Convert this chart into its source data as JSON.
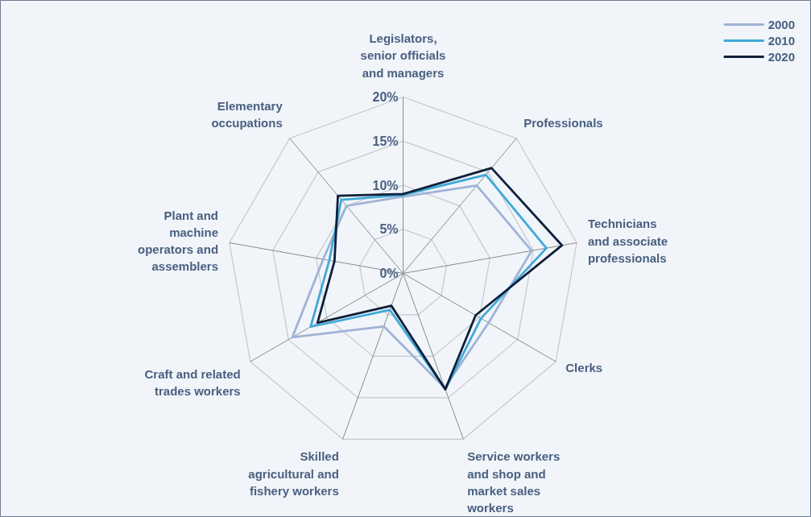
{
  "chart_data": {
    "type": "radar",
    "categories": [
      "Legislators,\nsenior officials\nand managers",
      "Professionals",
      "Technicians\nand associate\nprofessionals",
      "Clerks",
      "Service workers\nand shop and\nmarket sales\nworkers",
      "Skilled\nagricultural and\nfishery workers",
      "Craft and related\ntrades workers",
      "Plant and\nmachine\noperators and\nassemblers",
      "Elementary\noccupations"
    ],
    "series": [
      {
        "name": "2000",
        "color": "#9fb3d6",
        "values": [
          8.7,
          13.0,
          14.8,
          11.2,
          13.8,
          6.4,
          14.5,
          9.2,
          10.0
        ]
      },
      {
        "name": "2010",
        "color": "#3fa9d9",
        "values": [
          8.9,
          14.6,
          16.5,
          10.2,
          14.0,
          4.4,
          12.1,
          8.5,
          10.9
        ]
      },
      {
        "name": "2020",
        "color": "#0f1f3a",
        "values": [
          9.0,
          15.6,
          18.3,
          9.5,
          14.0,
          3.9,
          11.2,
          7.9,
          11.5
        ]
      }
    ],
    "ylim": [
      0,
      20
    ],
    "yticks": [
      {
        "value": 0,
        "label": "0%"
      },
      {
        "value": 5,
        "label": "5%"
      },
      {
        "value": 10,
        "label": "10%"
      },
      {
        "value": 15,
        "label": "15%"
      },
      {
        "value": 20,
        "label": "20%"
      }
    ],
    "grid": true,
    "legend": "top right"
  }
}
